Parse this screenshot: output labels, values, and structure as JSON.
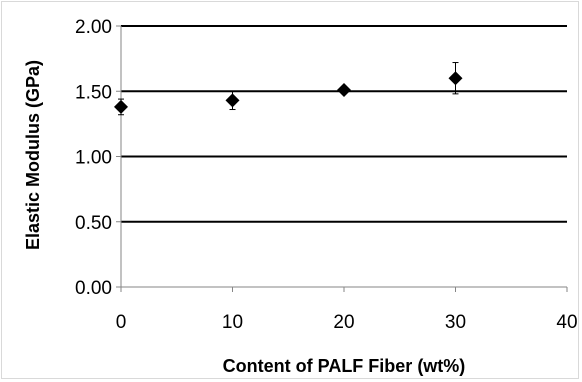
{
  "chart_data": {
    "type": "scatter",
    "title": "",
    "xlabel": "Content of PALF Fiber (wt%)",
    "ylabel": "Elastic Modulus (GPa)",
    "xlim": [
      0,
      40
    ],
    "ylim": [
      0,
      2
    ],
    "x_ticks": [
      0,
      10,
      20,
      30,
      40
    ],
    "x_tick_labels": [
      "0",
      "10",
      "20",
      "30",
      "40"
    ],
    "y_ticks": [
      0,
      0.5,
      1,
      1.5,
      2
    ],
    "y_tick_labels": [
      "0.00",
      "0.50",
      "1.00",
      "1.50",
      "2.00"
    ],
    "grid": "horizontal",
    "legend": "none",
    "marker": "diamond",
    "marker_color": "#000000",
    "series": [
      {
        "x": [
          0,
          10,
          20,
          30
        ],
        "y": [
          1.38,
          1.43,
          1.51,
          1.6
        ],
        "error": [
          0.06,
          0.07,
          0.02,
          0.12
        ]
      }
    ]
  }
}
